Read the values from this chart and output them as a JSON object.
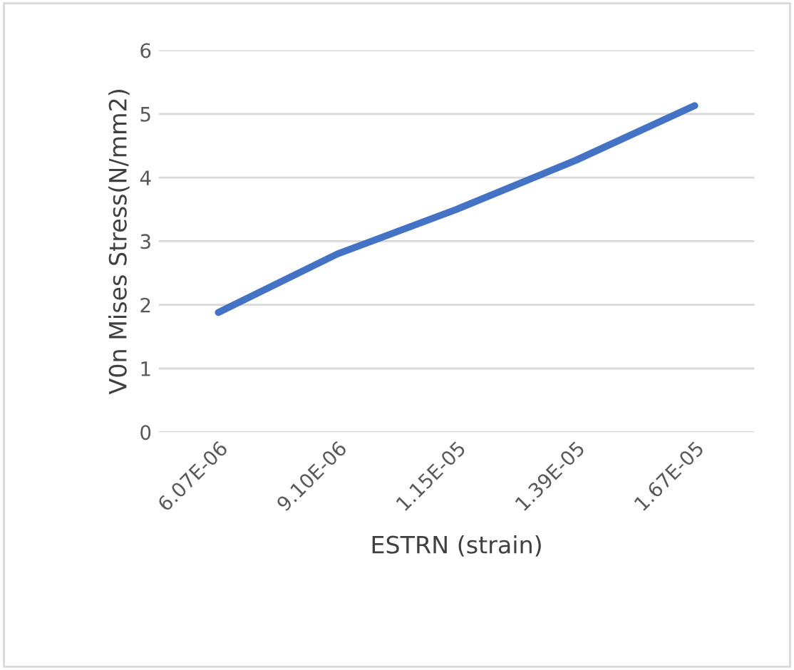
{
  "chart_data": {
    "type": "line",
    "xlabel": "ESTRN (strain)",
    "ylabel": "V0n Mises Stress(N/mm2)",
    "categories": [
      "6.07E-06",
      "9.10E-06",
      "1.15E-05",
      "1.39E-05",
      "1.67E-05"
    ],
    "series": [
      {
        "color": "#4472c4",
        "values": [
          1.88,
          2.8,
          3.5,
          4.27,
          5.13
        ]
      }
    ],
    "ylim": [
      0,
      6
    ],
    "yticks": [
      0,
      1,
      2,
      3,
      4,
      5,
      6
    ],
    "grid": "y",
    "marker": "none",
    "line_style": "solid"
  }
}
